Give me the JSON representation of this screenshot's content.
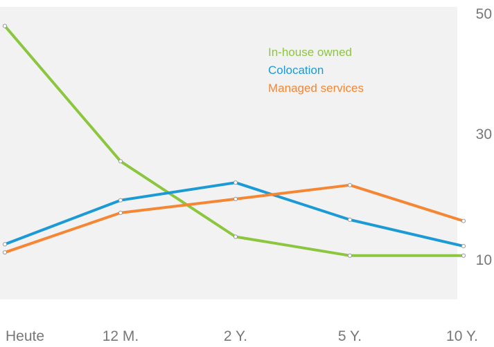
{
  "chart_data": {
    "type": "line",
    "categories": [
      "Heute",
      "12 M.",
      "2 Y.",
      "5 Y.",
      "10 Y."
    ],
    "yticks": [
      "10",
      "30",
      "50"
    ],
    "ylim": [
      0,
      50
    ],
    "grid": false,
    "legend_position": "top-right",
    "series": [
      {
        "name": "In-house owned",
        "color": "#8cc63f",
        "values": [
          47,
          25.5,
          13.5,
          10.5,
          10.5
        ]
      },
      {
        "name": "Colocation",
        "color": "#1b9ad6",
        "values": [
          12.3,
          19.3,
          22.1,
          16.2,
          12
        ]
      },
      {
        "name": "Managed services",
        "color": "#f58634",
        "values": [
          11,
          17.3,
          19.5,
          21.7,
          16
        ]
      }
    ]
  }
}
